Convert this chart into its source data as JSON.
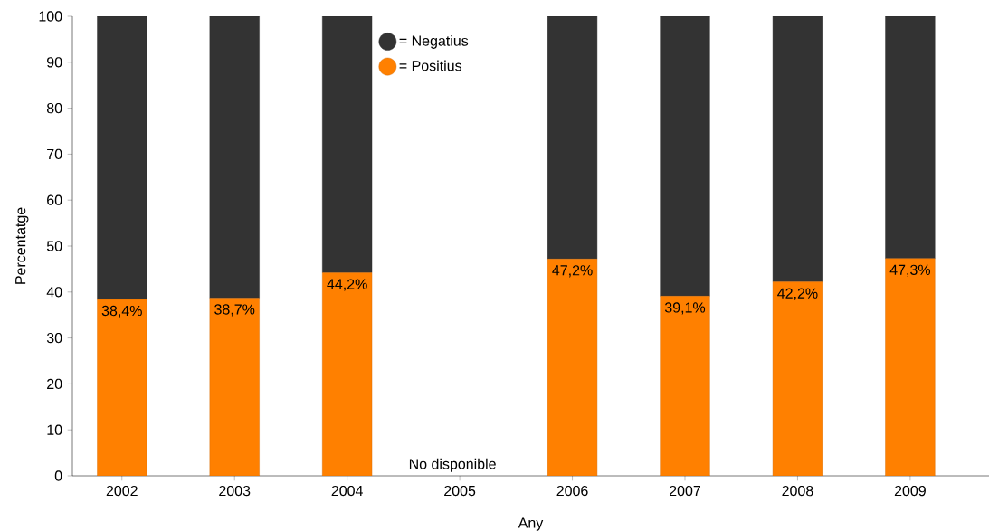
{
  "chart_data": {
    "type": "bar",
    "stacked": true,
    "xlabel": "Any",
    "ylabel": "Percentatge",
    "categories": [
      "2002",
      "2003",
      "2004",
      "2005",
      "2006",
      "2007",
      "2008",
      "2009"
    ],
    "series": [
      {
        "name": "= Positius",
        "color": "#ff8000",
        "values": [
          38.4,
          38.7,
          44.2,
          null,
          47.2,
          39.1,
          42.2,
          47.3
        ],
        "value_labels": [
          "38,4%",
          "38,7%",
          "44,2%",
          null,
          "47,2%",
          "39,1%",
          "42,2%",
          "47,3%"
        ]
      },
      {
        "name": "= Negatius",
        "color": "#333333",
        "values": [
          61.6,
          61.3,
          55.8,
          null,
          52.8,
          60.9,
          57.8,
          52.7
        ]
      }
    ],
    "ylim": [
      0,
      100
    ],
    "yticks": [
      0,
      10,
      20,
      30,
      40,
      50,
      60,
      70,
      80,
      90,
      100
    ],
    "annotations": [
      "No disponible"
    ],
    "legend": "top",
    "grid": false
  }
}
